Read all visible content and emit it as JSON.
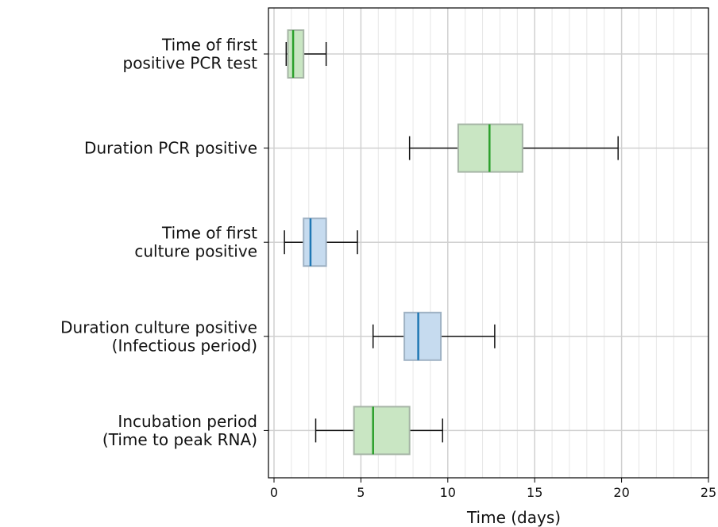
{
  "chart_data": {
    "type": "boxplot",
    "orientation": "horizontal",
    "xlabel": "Time (days)",
    "ylabel": "",
    "xlim": [
      0,
      25
    ],
    "xticks": [
      0,
      5,
      10,
      15,
      20,
      25
    ],
    "minor_xtick_step": 1,
    "grid": true,
    "categories": [
      {
        "label_lines": [
          "Time of first",
          "positive PCR test"
        ],
        "whisker_low": 0.7,
        "q1": 0.8,
        "median": 1.1,
        "q3": 1.7,
        "whisker_high": 3.0,
        "color": "green"
      },
      {
        "label_lines": [
          "Duration PCR positive"
        ],
        "whisker_low": 7.8,
        "q1": 10.6,
        "median": 12.4,
        "q3": 14.3,
        "whisker_high": 19.8,
        "color": "green"
      },
      {
        "label_lines": [
          "Time of first",
          "culture positive"
        ],
        "whisker_low": 0.6,
        "q1": 1.7,
        "median": 2.1,
        "q3": 3.0,
        "whisker_high": 4.8,
        "color": "blue"
      },
      {
        "label_lines": [
          "Duration culture positive",
          "(Infectious period)"
        ],
        "whisker_low": 5.7,
        "q1": 7.5,
        "median": 8.3,
        "q3": 9.6,
        "whisker_high": 12.7,
        "color": "blue"
      },
      {
        "label_lines": [
          "Incubation period",
          "(Time to peak RNA)"
        ],
        "whisker_low": 2.4,
        "q1": 4.6,
        "median": 5.7,
        "q3": 7.8,
        "whisker_high": 9.7,
        "color": "green"
      }
    ],
    "colors": {
      "green": {
        "fill": "#c9e6c3",
        "edge": "#a6b5a6",
        "median": "#2ca02c"
      },
      "blue": {
        "fill": "#c6dbef",
        "edge": "#9fb2c4",
        "median": "#1f77b4"
      },
      "whisker": "#111111",
      "grid_major": "#d0d0d0",
      "grid_minor": "#e6e6e6",
      "axis": "#000000"
    }
  }
}
